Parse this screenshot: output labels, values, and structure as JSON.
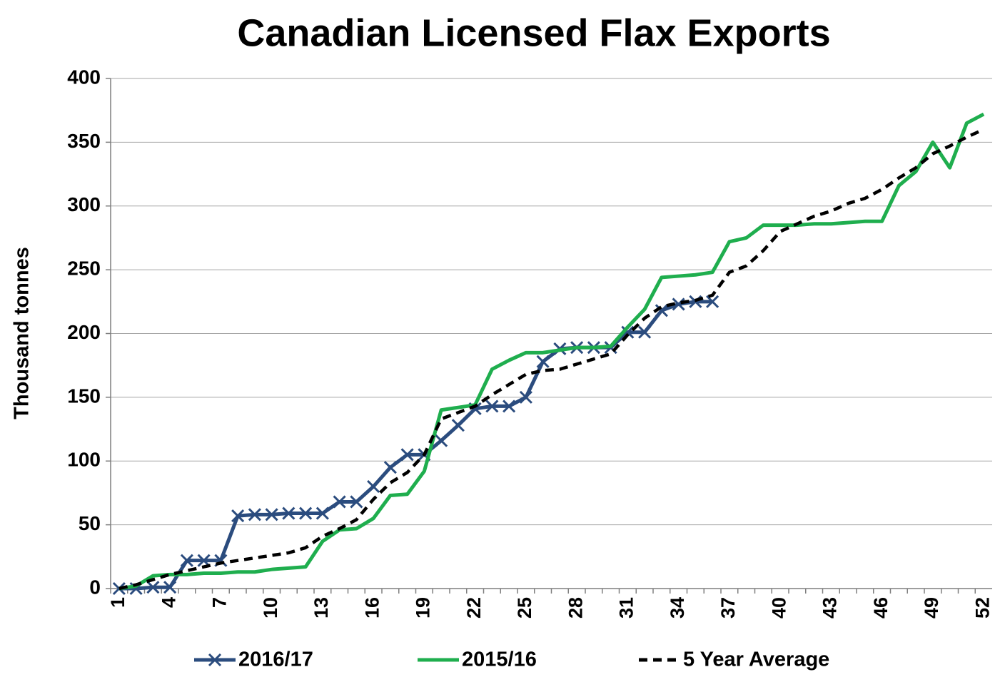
{
  "chart_data": {
    "type": "line",
    "title": "Canadian Licensed Flax Exports",
    "y_label": "Thousand tonnes",
    "categories": [
      "1",
      null,
      null,
      "4",
      null,
      null,
      "7",
      null,
      null,
      "10",
      null,
      null,
      "13",
      null,
      null,
      "16",
      null,
      null,
      "19",
      null,
      null,
      "22",
      null,
      null,
      "25",
      null,
      null,
      "28",
      null,
      null,
      "31",
      null,
      null,
      "34",
      null,
      null,
      "37",
      null,
      null,
      "40",
      null,
      null,
      "43",
      null,
      null,
      "46",
      null,
      null,
      "49",
      null,
      null,
      "52"
    ],
    "series": [
      {
        "name": "2016/17",
        "color": "#2b4c7e",
        "marker": "x",
        "values": [
          0,
          0,
          1,
          1,
          22,
          22,
          22,
          57,
          58,
          58,
          59,
          59,
          59,
          68,
          68,
          80,
          95,
          105,
          105,
          116,
          128,
          141,
          143,
          143,
          150,
          178,
          188,
          189,
          189,
          189,
          201,
          201,
          218,
          223,
          225,
          225,
          null,
          null,
          null,
          null,
          null,
          null,
          null,
          null,
          null,
          null,
          null,
          null,
          null,
          null,
          null,
          null
        ]
      },
      {
        "name": "2015/16",
        "color": "#1fae4e",
        "values": [
          0,
          2,
          10,
          11,
          11,
          12,
          12,
          13,
          13,
          15,
          16,
          17,
          37,
          46,
          47,
          55,
          73,
          74,
          92,
          140,
          142,
          144,
          172,
          179,
          185,
          185,
          187,
          189,
          189,
          190,
          205,
          219,
          244,
          245,
          246,
          248,
          272,
          275,
          285,
          285,
          285,
          286,
          286,
          287,
          288,
          288,
          316,
          327,
          350,
          330,
          365,
          372
        ]
      },
      {
        "name": "5 Year Average",
        "color": "#000000",
        "dash": true,
        "values": [
          0,
          3,
          7,
          11,
          14,
          17,
          20,
          22,
          24,
          26,
          28,
          32,
          41,
          47,
          54,
          70,
          83,
          91,
          105,
          133,
          138,
          143,
          152,
          160,
          168,
          171,
          172,
          176,
          180,
          184,
          199,
          212,
          221,
          224,
          226,
          230,
          248,
          253,
          265,
          280,
          286,
          292,
          296,
          302,
          306,
          313,
          322,
          330,
          341,
          347,
          354,
          360
        ]
      }
    ],
    "ylim": [
      0,
      400
    ],
    "yticks": [
      0,
      50,
      100,
      150,
      200,
      250,
      300,
      350,
      400
    ],
    "grid": true,
    "legend": "bottom"
  }
}
